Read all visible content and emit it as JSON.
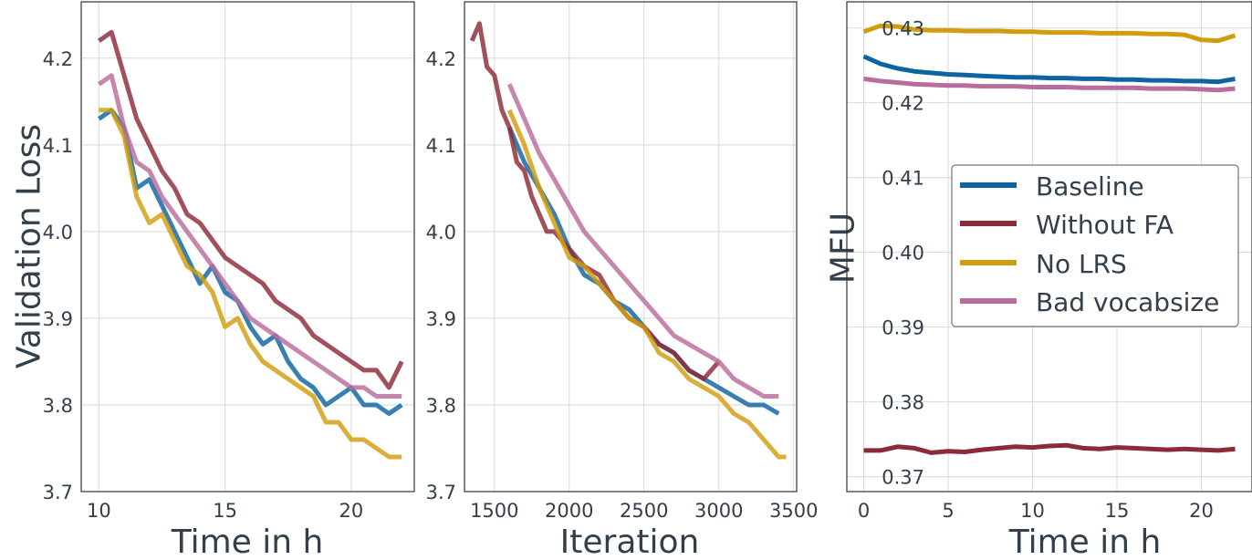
{
  "colors": {
    "Baseline": "#0d64a1",
    "Without FA": "#8c2a38",
    "No LRS": "#d19d0e",
    "Bad vocabsize": "#b86d9c"
  },
  "chart_data": [
    {
      "type": "line",
      "xlabel": "Time in h",
      "ylabel": "Validation Loss",
      "xlim": [
        9.3,
        22.5
      ],
      "ylim": [
        3.7,
        4.265
      ],
      "xticks": [
        10,
        15,
        20
      ],
      "yticks": [
        3.7,
        3.8,
        3.9,
        4.0,
        4.1,
        4.2
      ],
      "grid": true,
      "series": [
        {
          "name": "Baseline",
          "x": [
            10.0,
            10.5,
            11.0,
            11.5,
            12.0,
            12.5,
            13.0,
            13.5,
            14.0,
            14.5,
            15.0,
            15.5,
            16.0,
            16.5,
            17.0,
            17.5,
            18.0,
            18.5,
            19.0,
            19.5,
            20.0,
            20.5,
            21.0,
            21.5,
            22.0
          ],
          "y": [
            4.13,
            4.14,
            4.12,
            4.05,
            4.06,
            4.03,
            4.0,
            3.97,
            3.94,
            3.96,
            3.93,
            3.92,
            3.89,
            3.87,
            3.88,
            3.85,
            3.83,
            3.82,
            3.8,
            3.81,
            3.82,
            3.8,
            3.8,
            3.79,
            3.8
          ]
        },
        {
          "name": "Without FA",
          "x": [
            10.0,
            10.5,
            11.0,
            11.5,
            12.0,
            12.5,
            13.0,
            13.5,
            14.0,
            14.5,
            15.0,
            15.5,
            16.0,
            16.5,
            17.0,
            17.5,
            18.0,
            18.5,
            19.0,
            19.5,
            20.0,
            20.5,
            21.0,
            21.5,
            22.0
          ],
          "y": [
            4.22,
            4.23,
            4.18,
            4.13,
            4.1,
            4.07,
            4.05,
            4.02,
            4.01,
            3.99,
            3.97,
            3.96,
            3.95,
            3.94,
            3.92,
            3.91,
            3.9,
            3.88,
            3.87,
            3.86,
            3.85,
            3.84,
            3.84,
            3.82,
            3.85
          ]
        },
        {
          "name": "No LRS",
          "x": [
            10.0,
            10.5,
            11.0,
            11.5,
            12.0,
            12.5,
            13.0,
            13.5,
            14.0,
            14.5,
            15.0,
            15.5,
            16.0,
            16.5,
            17.0,
            17.5,
            18.0,
            18.5,
            19.0,
            19.5,
            20.0,
            20.5,
            21.0,
            21.5,
            22.0
          ],
          "y": [
            4.14,
            4.14,
            4.11,
            4.04,
            4.01,
            4.02,
            3.99,
            3.96,
            3.95,
            3.93,
            3.89,
            3.9,
            3.87,
            3.85,
            3.84,
            3.83,
            3.82,
            3.81,
            3.78,
            3.78,
            3.76,
            3.76,
            3.75,
            3.74,
            3.74
          ]
        },
        {
          "name": "Bad vocabsize",
          "x": [
            10.0,
            10.5,
            11.0,
            11.5,
            12.0,
            12.5,
            13.0,
            13.5,
            14.0,
            14.5,
            15.0,
            15.5,
            16.0,
            16.5,
            17.0,
            17.5,
            18.0,
            18.5,
            19.0,
            19.5,
            20.0,
            20.5,
            21.0,
            21.5,
            22.0
          ],
          "y": [
            4.17,
            4.18,
            4.12,
            4.08,
            4.07,
            4.04,
            4.02,
            4.0,
            3.98,
            3.96,
            3.94,
            3.92,
            3.9,
            3.89,
            3.88,
            3.87,
            3.86,
            3.85,
            3.84,
            3.83,
            3.82,
            3.82,
            3.81,
            3.81,
            3.81
          ]
        }
      ]
    },
    {
      "type": "line",
      "xlabel": "Iteration",
      "ylabel": "",
      "xlim": [
        1300,
        3520
      ],
      "ylim": [
        3.7,
        4.265
      ],
      "xticks": [
        1500,
        2000,
        2500,
        3000,
        3500
      ],
      "yticks": [
        3.7,
        3.8,
        3.9,
        4.0,
        4.1,
        4.2
      ],
      "grid": true,
      "series": [
        {
          "name": "Baseline",
          "x": [
            1600,
            1700,
            1800,
            1900,
            2000,
            2100,
            2200,
            2300,
            2400,
            2500,
            2600,
            2700,
            2800,
            2900,
            3000,
            3100,
            3200,
            3300,
            3400
          ],
          "y": [
            4.12,
            4.08,
            4.05,
            4.02,
            3.98,
            3.95,
            3.94,
            3.92,
            3.91,
            3.89,
            3.87,
            3.86,
            3.84,
            3.83,
            3.82,
            3.81,
            3.8,
            3.8,
            3.79
          ]
        },
        {
          "name": "Without FA",
          "x": [
            1350,
            1400,
            1450,
            1500,
            1550,
            1600,
            1650,
            1700,
            1750,
            1800,
            1850,
            1900,
            1950,
            2000,
            2100,
            2200,
            2300,
            2400,
            2500,
            2600,
            2700,
            2800,
            2900,
            3000
          ],
          "y": [
            4.22,
            4.24,
            4.19,
            4.18,
            4.14,
            4.12,
            4.08,
            4.07,
            4.04,
            4.02,
            4.0,
            4.0,
            3.99,
            3.98,
            3.96,
            3.95,
            3.92,
            3.9,
            3.89,
            3.87,
            3.86,
            3.84,
            3.83,
            3.85
          ]
        },
        {
          "name": "No LRS",
          "x": [
            1600,
            1700,
            1800,
            1900,
            2000,
            2100,
            2200,
            2300,
            2400,
            2500,
            2600,
            2700,
            2800,
            2900,
            3000,
            3100,
            3200,
            3300,
            3400,
            3450
          ],
          "y": [
            4.14,
            4.1,
            4.05,
            4.01,
            3.97,
            3.96,
            3.94,
            3.92,
            3.9,
            3.89,
            3.86,
            3.85,
            3.83,
            3.82,
            3.81,
            3.79,
            3.78,
            3.76,
            3.74,
            3.74
          ]
        },
        {
          "name": "Bad vocabsize",
          "x": [
            1600,
            1700,
            1800,
            1900,
            2000,
            2100,
            2200,
            2300,
            2400,
            2500,
            2600,
            2700,
            2800,
            2900,
            3000,
            3100,
            3200,
            3300,
            3400
          ],
          "y": [
            4.17,
            4.13,
            4.09,
            4.06,
            4.03,
            4.0,
            3.98,
            3.96,
            3.94,
            3.92,
            3.9,
            3.88,
            3.87,
            3.86,
            3.85,
            3.83,
            3.82,
            3.81,
            3.81
          ]
        }
      ]
    },
    {
      "type": "line",
      "xlabel": "Time in h",
      "ylabel": "MFU",
      "xlim": [
        -1.0,
        23.0
      ],
      "ylim": [
        0.368,
        0.4335
      ],
      "xticks": [
        0,
        5,
        10,
        15,
        20
      ],
      "yticks": [
        0.37,
        0.38,
        0.39,
        0.4,
        0.41,
        0.42,
        0.43
      ],
      "grid": true,
      "legend": "center-right",
      "series": [
        {
          "name": "Baseline",
          "x": [
            0,
            1,
            2,
            3,
            4,
            5,
            6,
            7,
            8,
            9,
            10,
            11,
            12,
            13,
            14,
            15,
            16,
            17,
            18,
            19,
            20,
            21,
            22
          ],
          "y": [
            0.4262,
            0.4252,
            0.4246,
            0.4242,
            0.424,
            0.4238,
            0.4237,
            0.4236,
            0.4235,
            0.4234,
            0.4234,
            0.4233,
            0.4233,
            0.4232,
            0.4232,
            0.4231,
            0.4231,
            0.423,
            0.423,
            0.4229,
            0.4229,
            0.4228,
            0.4232
          ]
        },
        {
          "name": "Without FA",
          "x": [
            0,
            1,
            2,
            3,
            4,
            5,
            6,
            7,
            8,
            9,
            10,
            11,
            12,
            13,
            14,
            15,
            16,
            17,
            18,
            19,
            20,
            21,
            22
          ],
          "y": [
            0.3735,
            0.3735,
            0.374,
            0.3738,
            0.3732,
            0.3734,
            0.3733,
            0.3736,
            0.3738,
            0.374,
            0.3739,
            0.3741,
            0.3742,
            0.3738,
            0.3737,
            0.3739,
            0.3738,
            0.3737,
            0.3736,
            0.3737,
            0.3736,
            0.3735,
            0.3737
          ]
        },
        {
          "name": "No LRS",
          "x": [
            0,
            1,
            2,
            3,
            4,
            5,
            6,
            7,
            8,
            9,
            10,
            11,
            12,
            13,
            14,
            15,
            16,
            17,
            18,
            19,
            20,
            21,
            22
          ],
          "y": [
            0.4295,
            0.4303,
            0.4302,
            0.4298,
            0.4297,
            0.4297,
            0.4296,
            0.4296,
            0.4296,
            0.4295,
            0.4295,
            0.4294,
            0.4294,
            0.4294,
            0.4293,
            0.4293,
            0.4293,
            0.4292,
            0.4292,
            0.4291,
            0.4284,
            0.4283,
            0.429
          ]
        },
        {
          "name": "Bad vocabsize",
          "x": [
            0,
            1,
            2,
            3,
            4,
            5,
            6,
            7,
            8,
            9,
            10,
            11,
            12,
            13,
            14,
            15,
            16,
            17,
            18,
            19,
            20,
            21,
            22
          ],
          "y": [
            0.4232,
            0.4229,
            0.4227,
            0.4225,
            0.4224,
            0.4223,
            0.4223,
            0.4222,
            0.4222,
            0.4222,
            0.4221,
            0.4221,
            0.4221,
            0.422,
            0.422,
            0.422,
            0.422,
            0.4219,
            0.4219,
            0.4219,
            0.4218,
            0.4217,
            0.4219
          ]
        }
      ]
    }
  ]
}
